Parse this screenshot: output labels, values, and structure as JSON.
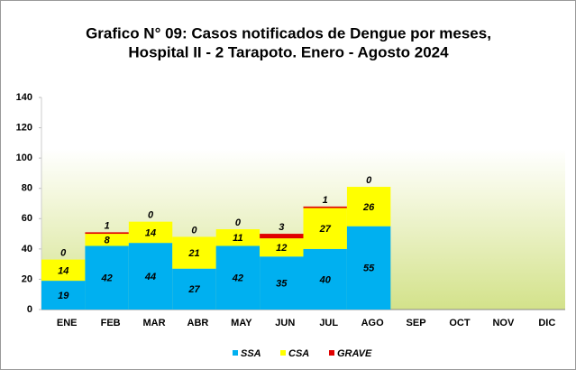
{
  "chart_data": {
    "type": "bar",
    "stacked": true,
    "title": [
      "Grafico N° 09: Casos notificados  de Dengue por meses,",
      "Hospital II - 2 Tarapoto. Enero - Agosto 2024"
    ],
    "categories": [
      "ENE",
      "FEB",
      "MAR",
      "ABR",
      "MAY",
      "JUN",
      "JUL",
      "AGO",
      "SEP",
      "OCT",
      "NOV",
      "DIC"
    ],
    "series": [
      {
        "name": "SSA",
        "color": "#00b0f0",
        "values": [
          19,
          42,
          44,
          27,
          42,
          35,
          40,
          55,
          null,
          null,
          null,
          null
        ]
      },
      {
        "name": "CSA",
        "color": "#ffff00",
        "values": [
          14,
          8,
          14,
          21,
          11,
          12,
          27,
          26,
          null,
          null,
          null,
          null
        ]
      },
      {
        "name": "GRAVE",
        "color": "#e00000",
        "values": [
          0,
          1,
          0,
          0,
          0,
          3,
          1,
          0,
          null,
          null,
          null,
          null
        ]
      }
    ],
    "ylim": [
      0,
      140
    ],
    "yticks": [
      0,
      20,
      40,
      60,
      80,
      100,
      120,
      140
    ],
    "grid": false,
    "legend": "bottom"
  }
}
